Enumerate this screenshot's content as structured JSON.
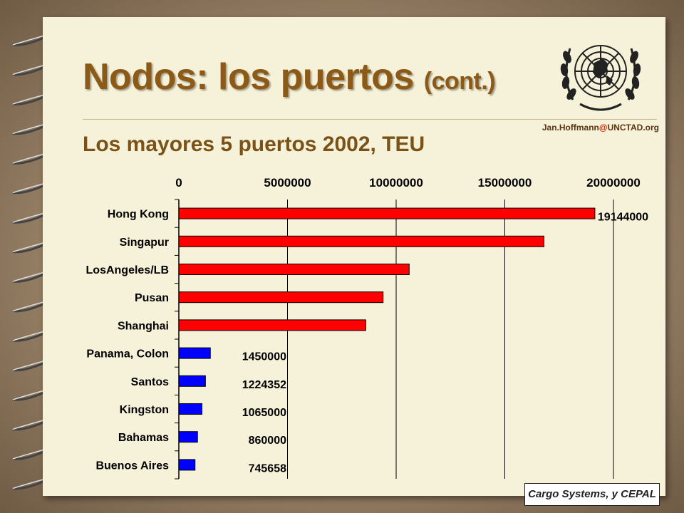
{
  "slide": {
    "title_main": "Nodos: los puertos",
    "title_small": "(cont.)",
    "subtitle": "Los mayores 5 puertos 2002, TEU",
    "contact_user": "Jan.Hoffmann",
    "contact_at": "@",
    "contact_domain": "UNCTAD.org",
    "source": "Cargo Systems, y CEPAL"
  },
  "colors": {
    "title": "#8c5a16",
    "top5_bar": "#ff0000",
    "other_bar": "#0000ff",
    "page": "#f6f2da"
  },
  "chart_data": {
    "type": "bar",
    "orientation": "horizontal",
    "xlim": [
      0,
      20000000
    ],
    "ticks": [
      "0",
      "5000000",
      "10000000",
      "15000000",
      "20000000"
    ],
    "tick_values": [
      0,
      5000000,
      10000000,
      15000000,
      20000000
    ],
    "grid": true,
    "axis_labels_position": "top",
    "categories": [
      "Hong Kong",
      "Singapur",
      "LosAngeles/LB",
      "Pusan",
      "Shanghai",
      "Panama, Colon",
      "Santos",
      "Kingston",
      "Bahamas",
      "Buenos Aires"
    ],
    "values": [
      19144000,
      16800000,
      10600000,
      9400000,
      8600000,
      1450000,
      1224352,
      1065000,
      860000,
      745658
    ],
    "bar_groups": [
      "top5",
      "top5",
      "top5",
      "top5",
      "top5",
      "other",
      "other",
      "other",
      "other",
      "other"
    ],
    "data_labels": [
      "19144000",
      "",
      "",
      "",
      "",
      "1450000",
      "1224352",
      "1065000",
      "860000",
      "745658"
    ]
  }
}
